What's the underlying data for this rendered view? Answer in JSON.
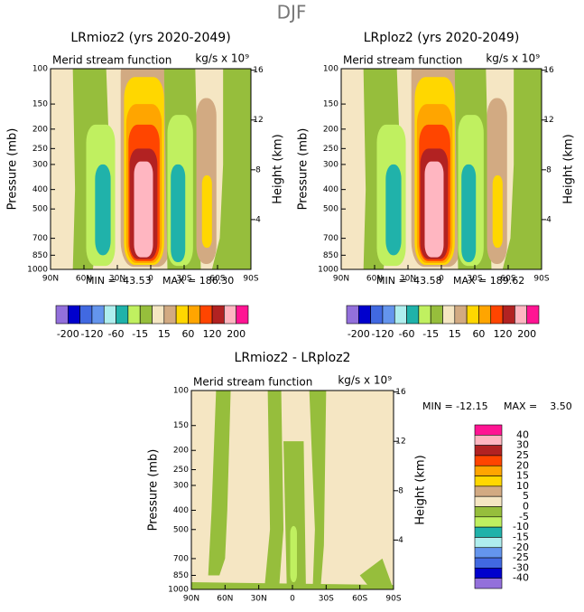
{
  "title": "DJF",
  "chart_data": [
    {
      "type": "contour",
      "title": "LRmioz2 (yrs 2020-2049)",
      "subtitle": "Merid stream function",
      "units": "kg/s x 10⁹",
      "xlim": [
        90,
        -90
      ],
      "xticks": [
        {
          "value": 90,
          "label": "90N"
        },
        {
          "value": 60,
          "label": "60N"
        },
        {
          "value": 30,
          "label": "30N"
        },
        0,
        {
          "value": -30,
          "label": "30S"
        },
        {
          "value": -60,
          "label": "60S"
        },
        {
          "value": -90,
          "label": "90S"
        }
      ],
      "ylabel": "Pressure (mb)",
      "yscale": "log",
      "ylim": [
        1000,
        100
      ],
      "yticks": [
        100,
        150,
        200,
        250,
        300,
        400,
        500,
        700,
        850,
        1000
      ],
      "y2label": "Height (km)",
      "y2lim": [
        0,
        16.12
      ],
      "y2ticks": [
        4,
        8,
        12,
        16
      ],
      "min_label": "MIN = -43.53",
      "max_label": "MAX = 186.30",
      "colorbar": {
        "orientation": "horizontal",
        "colors": [
          "#9370db",
          "#0000cd",
          "#4169e1",
          "#6495ed",
          "#afeeee",
          "#20b2aa",
          "#c0f060",
          "#96be3c",
          "#f5e6c3",
          "#d2aa82",
          "#ffd700",
          "#ffa500",
          "#ff4500",
          "#b22222",
          "#ffb6c1",
          "#ff1493"
        ],
        "labels": [
          -200,
          -120,
          -60,
          -15,
          15,
          60,
          120,
          200
        ]
      }
    },
    {
      "type": "contour",
      "title": "LRploz2 (yrs 2020-2049)",
      "subtitle": "Merid stream function",
      "units": "kg/s x 10⁹",
      "xlim": [
        90,
        -90
      ],
      "xticks": [
        {
          "value": 90,
          "label": "90N"
        },
        {
          "value": 60,
          "label": "60N"
        },
        {
          "value": 30,
          "label": "30N"
        },
        0,
        {
          "value": -30,
          "label": "30S"
        },
        {
          "value": -60,
          "label": "60S"
        },
        {
          "value": -90,
          "label": "90S"
        }
      ],
      "ylabel": "Pressure (mb)",
      "yscale": "log",
      "ylim": [
        1000,
        100
      ],
      "yticks": [
        100,
        150,
        200,
        250,
        300,
        400,
        500,
        700,
        850,
        1000
      ],
      "y2label": "Height (km)",
      "y2lim": [
        0,
        16.12
      ],
      "y2ticks": [
        4,
        8,
        12,
        16
      ],
      "min_label": "MIN = -43.58",
      "max_label": "MAX = 189.62",
      "colorbar": {
        "orientation": "horizontal",
        "colors": [
          "#9370db",
          "#0000cd",
          "#4169e1",
          "#6495ed",
          "#afeeee",
          "#20b2aa",
          "#c0f060",
          "#96be3c",
          "#f5e6c3",
          "#d2aa82",
          "#ffd700",
          "#ffa500",
          "#ff4500",
          "#b22222",
          "#ffb6c1",
          "#ff1493"
        ],
        "labels": [
          -200,
          -120,
          -60,
          -15,
          15,
          60,
          120,
          200
        ]
      }
    },
    {
      "type": "contour",
      "title": "LRmioz2 - LRploz2",
      "subtitle": "Merid stream function",
      "units": "kg/s x 10⁹",
      "xlim": [
        90,
        -90
      ],
      "xticks": [
        {
          "value": 90,
          "label": "90N"
        },
        {
          "value": 60,
          "label": "60N"
        },
        {
          "value": 30,
          "label": "30N"
        },
        0,
        {
          "value": -30,
          "label": "30S"
        },
        {
          "value": -60,
          "label": "60S"
        },
        {
          "value": -90,
          "label": "90S"
        }
      ],
      "ylabel": "Pressure (mb)",
      "yscale": "log",
      "ylim": [
        1000,
        100
      ],
      "yticks": [
        100,
        150,
        200,
        250,
        300,
        400,
        500,
        700,
        850,
        1000
      ],
      "y2label": "Height (km)",
      "y2lim": [
        0,
        16.12
      ],
      "y2ticks": [
        4,
        8,
        12,
        16
      ],
      "min_label": "MIN = -12.15",
      "max_label": "MAX =    3.50",
      "colorbar": {
        "orientation": "vertical",
        "colors": [
          "#ff1493",
          "#ffb6c1",
          "#b22222",
          "#ff4500",
          "#ffa500",
          "#ffd700",
          "#d2aa82",
          "#f5e6c3",
          "#96be3c",
          "#c0f060",
          "#20b2aa",
          "#afeeee",
          "#6495ed",
          "#4169e1",
          "#0000cd",
          "#9370db"
        ],
        "labels": [
          40,
          30,
          25,
          20,
          15,
          10,
          5,
          0,
          -5,
          -10,
          -15,
          -20,
          -25,
          -30,
          -40
        ]
      }
    }
  ]
}
